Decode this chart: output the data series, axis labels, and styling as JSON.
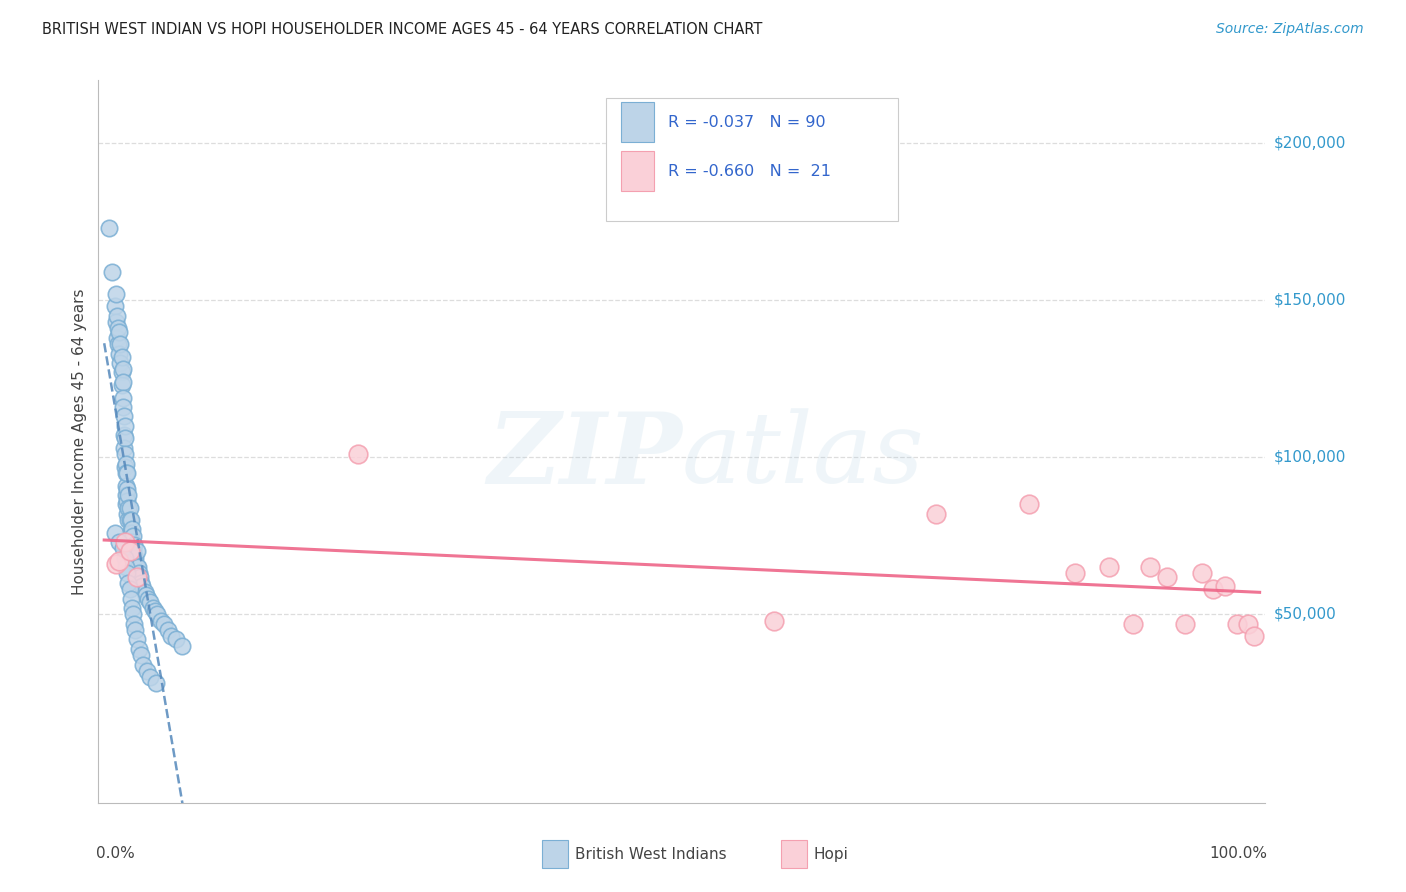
{
  "title": "BRITISH WEST INDIAN VS HOPI HOUSEHOLDER INCOME AGES 45 - 64 YEARS CORRELATION CHART",
  "source": "Source: ZipAtlas.com",
  "ylabel": "Householder Income Ages 45 - 64 years",
  "ytick_labels": [
    "$50,000",
    "$100,000",
    "$150,000",
    "$200,000"
  ],
  "ytick_values": [
    50000,
    100000,
    150000,
    200000
  ],
  "ylim": [
    -10000,
    220000
  ],
  "xlim": [
    -0.005,
    1.005
  ],
  "color_bwi": "#7BAFD4",
  "color_bwi_fill": "#BDD4E8",
  "color_hopi": "#F4A0B0",
  "color_hopi_fill": "#FAD0D8",
  "color_bwi_line": "#5588BB",
  "color_hopi_line": "#EE6688",
  "color_legend_text": "#3366CC",
  "color_source": "#3399CC",
  "color_title": "#222222",
  "color_ytick": "#3399CC",
  "color_grid": "#DDDDDD",
  "background_color": "#FFFFFF",
  "watermark": "ZIPatlas",
  "bwi_x": [
    0.004,
    0.007,
    0.009,
    0.01,
    0.01,
    0.011,
    0.011,
    0.012,
    0.012,
    0.013,
    0.013,
    0.014,
    0.014,
    0.015,
    0.015,
    0.015,
    0.016,
    0.016,
    0.016,
    0.016,
    0.017,
    0.017,
    0.017,
    0.018,
    0.018,
    0.018,
    0.018,
    0.019,
    0.019,
    0.019,
    0.019,
    0.019,
    0.02,
    0.02,
    0.02,
    0.02,
    0.021,
    0.021,
    0.021,
    0.022,
    0.022,
    0.022,
    0.023,
    0.023,
    0.024,
    0.024,
    0.025,
    0.025,
    0.026,
    0.026,
    0.027,
    0.028,
    0.028,
    0.029,
    0.03,
    0.031,
    0.032,
    0.033,
    0.035,
    0.036,
    0.038,
    0.04,
    0.042,
    0.044,
    0.046,
    0.049,
    0.052,
    0.055,
    0.058,
    0.062,
    0.067,
    0.009,
    0.013,
    0.016,
    0.018,
    0.019,
    0.02,
    0.021,
    0.022,
    0.023,
    0.024,
    0.025,
    0.026,
    0.027,
    0.028,
    0.03,
    0.032,
    0.034,
    0.037,
    0.04,
    0.045
  ],
  "bwi_y": [
    173000,
    159000,
    148000,
    143000,
    152000,
    145000,
    138000,
    141000,
    136000,
    140000,
    133000,
    136000,
    130000,
    127000,
    132000,
    123000,
    128000,
    124000,
    119000,
    116000,
    113000,
    107000,
    103000,
    110000,
    106000,
    101000,
    97000,
    98000,
    95000,
    91000,
    88000,
    85000,
    95000,
    90000,
    86000,
    82000,
    88000,
    84000,
    80000,
    84000,
    80000,
    76000,
    80000,
    76000,
    77000,
    73000,
    75000,
    70000,
    72000,
    68000,
    68000,
    70000,
    65000,
    65000,
    63000,
    62000,
    60000,
    59000,
    57000,
    56000,
    55000,
    54000,
    52000,
    51000,
    50000,
    48000,
    47000,
    45000,
    43000,
    42000,
    40000,
    76000,
    73000,
    71000,
    68000,
    65000,
    63000,
    60000,
    58000,
    55000,
    52000,
    50000,
    47000,
    45000,
    42000,
    39000,
    37000,
    34000,
    32000,
    30000,
    28000
  ],
  "hopi_x": [
    0.01,
    0.013,
    0.018,
    0.022,
    0.028,
    0.22,
    0.58,
    0.72,
    0.8,
    0.84,
    0.87,
    0.89,
    0.905,
    0.92,
    0.935,
    0.95,
    0.96,
    0.97,
    0.98,
    0.99,
    0.995
  ],
  "hopi_y": [
    66000,
    67000,
    73000,
    70000,
    62000,
    101000,
    48000,
    82000,
    85000,
    63000,
    65000,
    47000,
    65000,
    62000,
    47000,
    63000,
    58000,
    59000,
    47000,
    47000,
    43000
  ]
}
